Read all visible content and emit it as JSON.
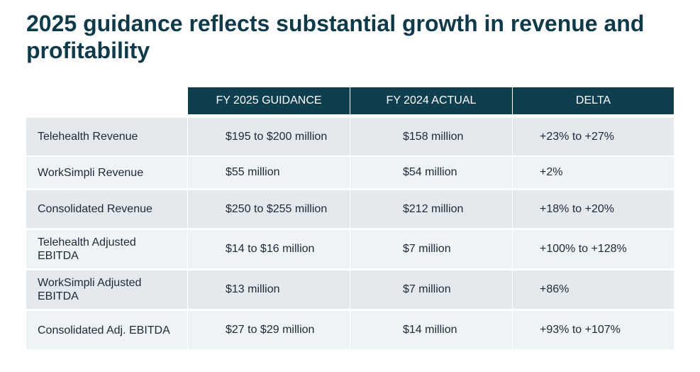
{
  "header": {
    "title": "2025 guidance reflects substantial growth in revenue and profitability"
  },
  "table": {
    "columns": [
      "FY 2025 GUIDANCE",
      "FY 2024 ACTUAL",
      "DELTA"
    ],
    "rows": [
      [
        "Telehealth Revenue",
        "$195 to $200 million",
        "$158 million",
        "+23% to +27%"
      ],
      [
        "WorkSimpli Revenue",
        "$55 million",
        "$54 million",
        "+2%"
      ],
      [
        "Consolidated Revenue",
        "$250 to $255 million",
        "$212 million",
        "+18% to +20%"
      ],
      [
        "Telehealth Adjusted EBITDA",
        "$14 to $16 million",
        "$7 million",
        "+100% to +128%"
      ],
      [
        "WorkSimpli Adjusted EBITDA",
        "$13 million",
        "$7 million",
        "+86%"
      ],
      [
        "Consolidated Adj. EBITDA",
        "$27 to $29 million",
        "$14 million",
        "+93% to +107%"
      ]
    ]
  }
}
